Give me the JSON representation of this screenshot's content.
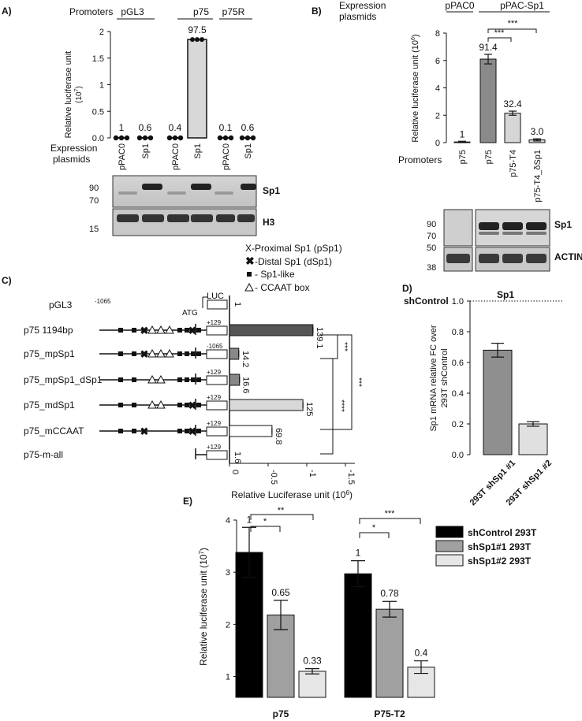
{
  "panel_labels": [
    "A)",
    "B)",
    "C)",
    "D)",
    "E)"
  ],
  "panel_a": {
    "promoters_label": "Promoters",
    "promoter_groups": [
      "pGL3",
      "p75",
      "p75R"
    ],
    "ylabel": "Relative luciferase unit",
    "ylabel_unit": "(10",
    "ylabel_exp": "7",
    "ylabel_close": ")",
    "y_ticks": [
      "0.0",
      "0.5",
      "1",
      "1.5",
      "2"
    ],
    "expression_label_1": "Expression",
    "expression_label_2": "plasmids",
    "x_labels": [
      "pPAC0",
      "Sp1",
      "pPAC0",
      "Sp1",
      "pPAC0",
      "Sp1"
    ],
    "data_labels": [
      "1",
      "0.6",
      "0.4",
      "97.5",
      "0.1",
      "0.6"
    ],
    "blot_markers": [
      "90",
      "70",
      "15"
    ],
    "blot_labels": [
      "Sp1",
      "H3"
    ]
  },
  "panel_b": {
    "expression_label_1": "Expression",
    "expression_label_2": "plasmids",
    "plasmid_groups": [
      "pPAC0",
      "pPAC-Sp1"
    ],
    "ylabel": "Relative luciferase unit (10",
    "ylabel_exp": "6",
    "ylabel_close": ")",
    "y_ticks": [
      "0",
      "2",
      "4",
      "6",
      "8"
    ],
    "promoters_label": "Promoters",
    "x_labels": [
      "p75",
      "p75",
      "p75-T4",
      "p75-T4_δSp1"
    ],
    "data_labels": [
      "1",
      "91.4",
      "32.4",
      "3.0"
    ],
    "sig_labels": [
      "***",
      "***"
    ],
    "blot_markers": [
      "90",
      "70",
      "50",
      "38"
    ],
    "blot_labels": [
      "Sp1",
      "ACTIN"
    ]
  },
  "panel_c": {
    "legend": [
      "X-Proximal Sp1 (pSp1)",
      "-Distal Sp1 (dSp1)",
      "- Sp1-like",
      "- CCAAT box"
    ],
    "construct_names": [
      "pGL3",
      "p75 1194bp",
      "p75_mpSp1",
      "p75_mpSp1_dSp1",
      "p75_mdSp1",
      "p75_mCCAAT",
      "p75-m-all"
    ],
    "luc_label": "LUC",
    "atg_label": "ATG",
    "pos_start": "-1065",
    "pos_labels": [
      "+129",
      "-1065",
      "+129",
      "+129",
      "+129",
      "+129"
    ],
    "data_labels": [
      "1",
      "139.1",
      "14.2",
      "16.6",
      "125",
      "69.8",
      "1.6"
    ],
    "sig_labels": [
      "***",
      "****",
      "***"
    ],
    "x_ticks": [
      "0",
      "-0.5",
      "-1",
      "-1.5"
    ],
    "xlabel": "Relative Luciferase unit (10",
    "xlabel_exp": "6",
    "xlabel_close": ")"
  },
  "panel_d": {
    "title": "Sp1",
    "ref_label": "shControl",
    "ylabel_1": "Sp1 mRNA relative FC over",
    "ylabel_2": "293T shControl",
    "y_ticks": [
      "0.0",
      "0.2",
      "0.4",
      "0.6",
      "0.8",
      "1.0"
    ],
    "x_labels": [
      "293T shSp1 #1",
      "293T shSp1 #2"
    ]
  },
  "panel_e": {
    "ylabel": "Relative luciferase unit (10",
    "ylabel_exp": "7",
    "ylabel_close": ")",
    "y_ticks": [
      "1",
      "2",
      "3",
      "4"
    ],
    "groups": [
      "p75",
      "P75-T2"
    ],
    "data_labels": [
      "1",
      "0.65",
      "0.33",
      "1",
      "0.78",
      "0.4"
    ],
    "sig_labels": [
      "**",
      "*",
      "***",
      "*"
    ],
    "legend": [
      "shControl 293T",
      "shSp1#1 293T",
      "shSp1#2 293T"
    ]
  },
  "chart_data": [
    {
      "type": "bar",
      "panel": "A",
      "categories": [
        "pGL3 pPAC0",
        "pGL3 Sp1",
        "p75 pPAC0",
        "p75 Sp1",
        "p75R pPAC0",
        "p75R Sp1"
      ],
      "values": [
        0.0,
        0.0,
        0.0,
        1.85,
        0.0,
        0.0
      ],
      "ylim": [
        0,
        2
      ]
    },
    {
      "type": "bar",
      "panel": "B",
      "categories": [
        "p75 pPAC0",
        "p75 pPAC-Sp1",
        "p75-T4 pPAC-Sp1",
        "p75-T4_δSp1 pPAC-Sp1"
      ],
      "values": [
        0.05,
        6.1,
        2.15,
        0.2
      ],
      "errors": [
        0.05,
        0.35,
        0.15,
        0.08
      ],
      "ylim": [
        0,
        8
      ]
    },
    {
      "type": "bar",
      "panel": "C",
      "orientation": "horizontal",
      "categories": [
        "pGL3",
        "p75 1194bp",
        "p75_mpSp1",
        "p75_mpSp1_dSp1",
        "p75_mdSp1",
        "p75_mCCAAT",
        "p75-m-all"
      ],
      "values": [
        0.0,
        1.08,
        0.12,
        0.13,
        0.95,
        0.55,
        0.0
      ],
      "xlim": [
        0,
        1.5
      ]
    },
    {
      "type": "bar",
      "panel": "D",
      "categories": [
        "293T shSp1 #1",
        "293T shSp1 #2"
      ],
      "values": [
        0.68,
        0.2
      ],
      "errors": [
        0.045,
        0.015
      ],
      "ylim": [
        0,
        1.0
      ],
      "reference": 1.0
    },
    {
      "type": "bar",
      "panel": "E",
      "categories": [
        "p75",
        "P75-T2"
      ],
      "series": [
        {
          "name": "shControl 293T",
          "color": "#000000",
          "values": [
            3.38,
            2.97
          ],
          "errors": [
            0.48,
            0.25
          ]
        },
        {
          "name": "shSp1#1 293T",
          "color": "#a0a0a0",
          "values": [
            2.18,
            2.29
          ],
          "errors": [
            0.28,
            0.15
          ]
        },
        {
          "name": "shSp1#2 293T",
          "color": "#e6e6e6",
          "values": [
            1.1,
            1.18
          ],
          "errors": [
            0.05,
            0.12
          ]
        }
      ],
      "ylim": [
        0.6,
        4
      ]
    }
  ]
}
